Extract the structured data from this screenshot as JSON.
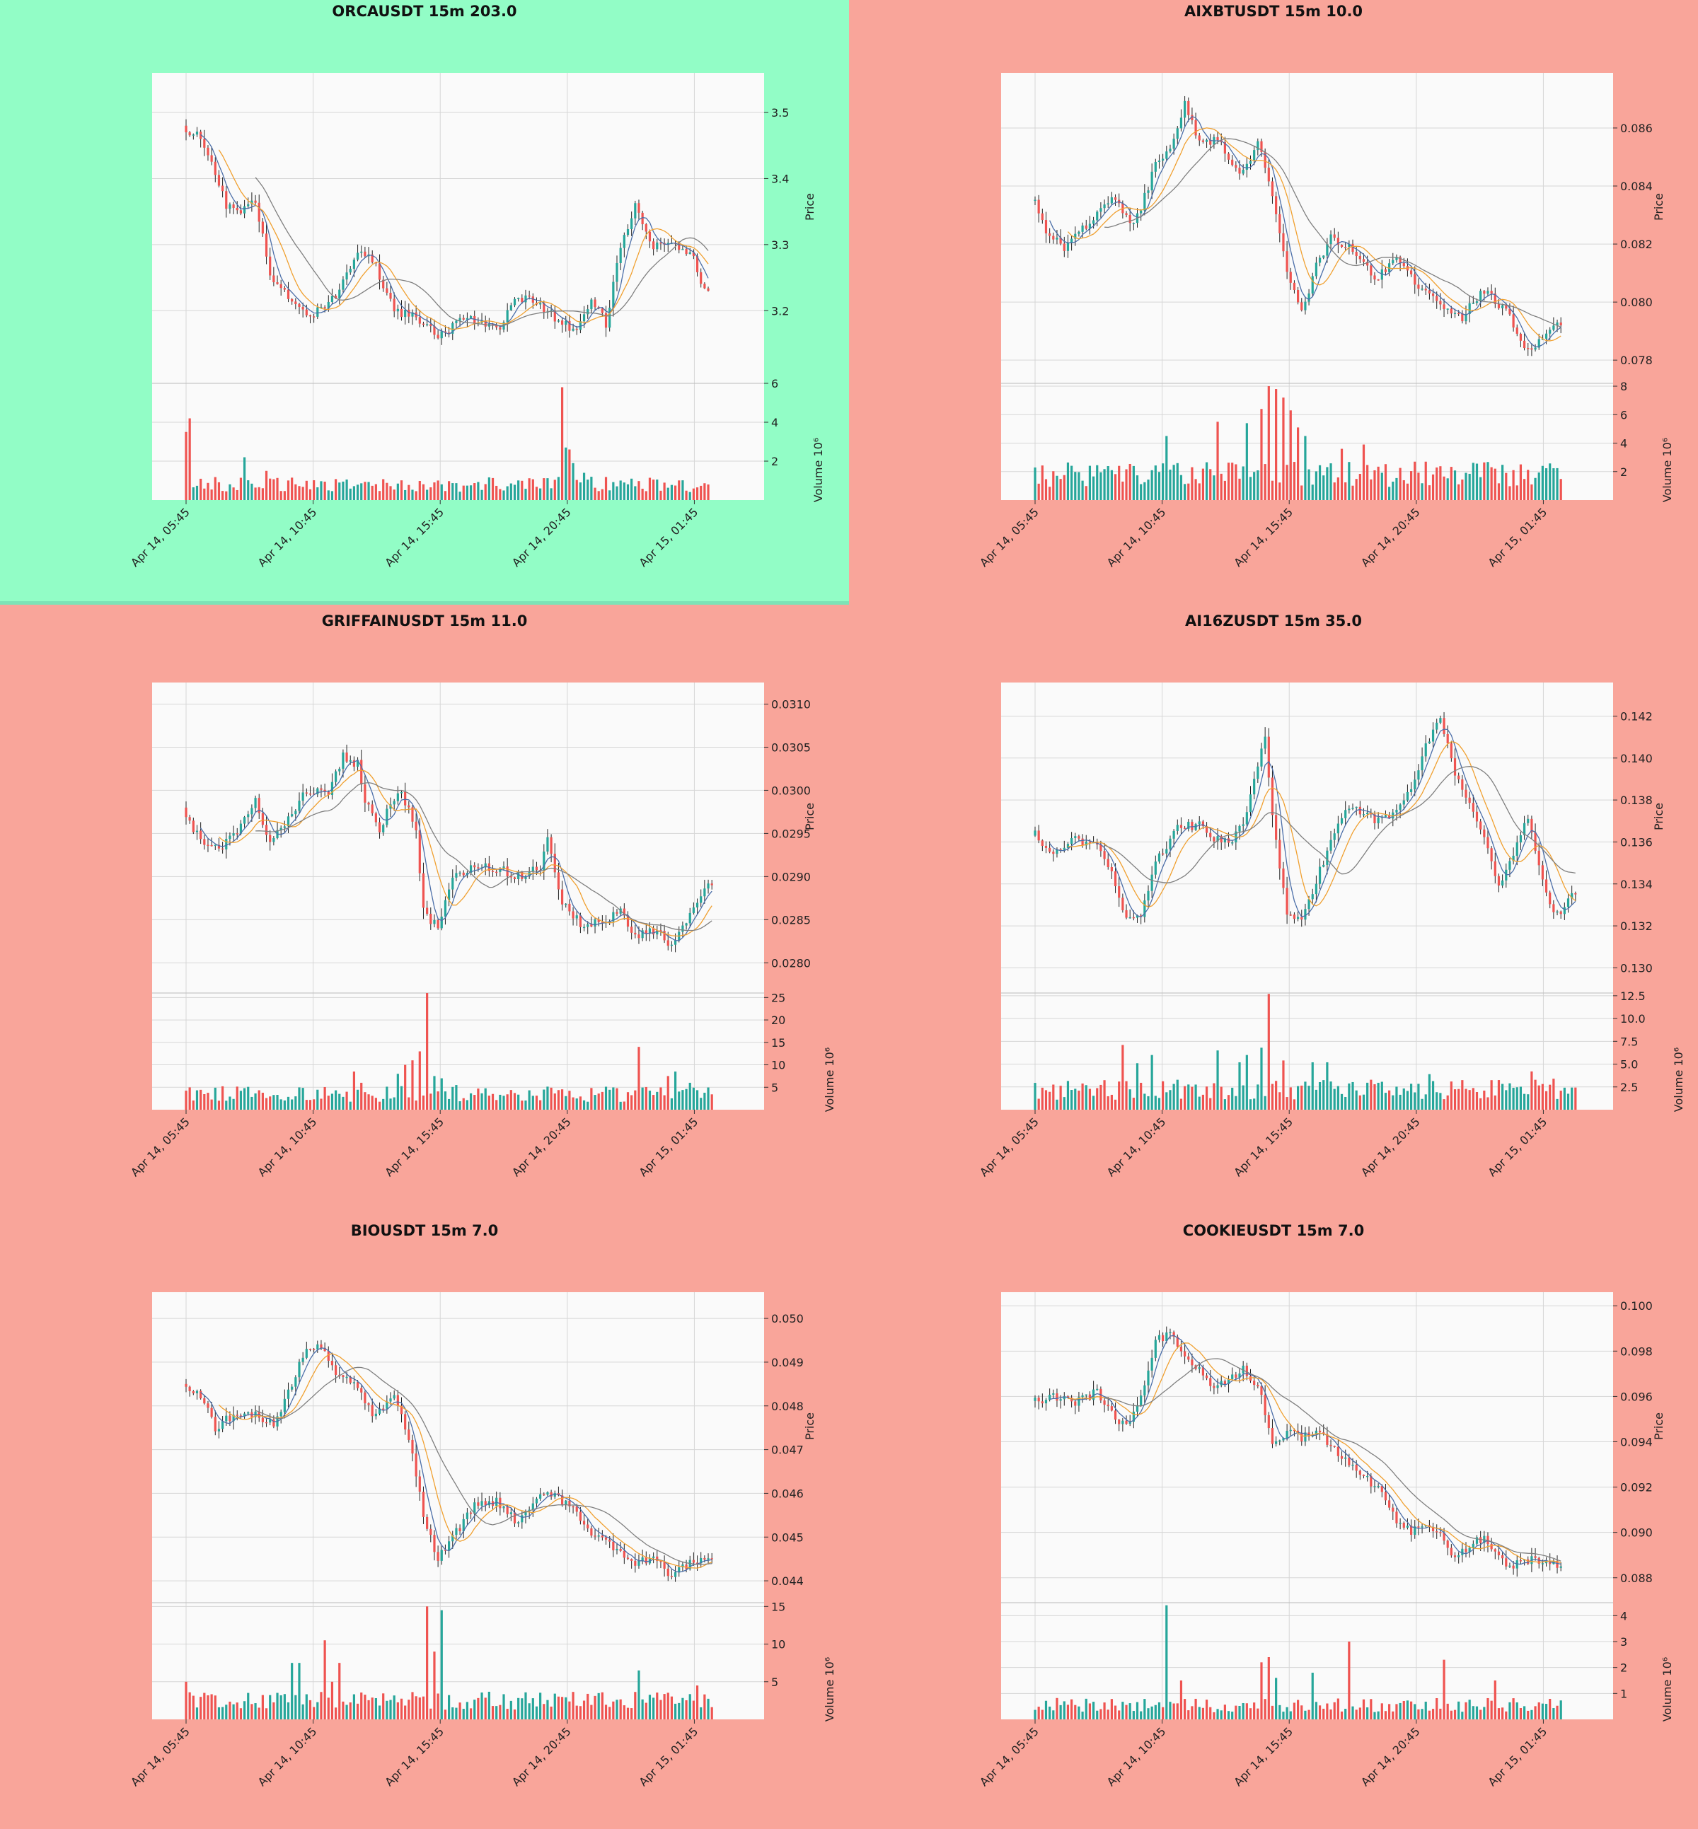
{
  "colors": {
    "up": "#26a69a",
    "down": "#ef5350",
    "ma_fast": "#4b6ea8",
    "ma_mid": "#f0a030",
    "ma_slow": "#7f7f7f",
    "bg_highlight": "#92fdc6",
    "bg_default": "#f9a59a",
    "plot_bg": "#fafafa",
    "grid": "#d6d6d6"
  },
  "chart_data": [
    {
      "type": "candlestick",
      "title": "ORCAUSDT 15m 203.0",
      "highlight": true,
      "price_label": "Price",
      "volume_label": "Volume  10⁶",
      "x_ticks": [
        "Apr 14, 05:45",
        "Apr 14, 10:45",
        "Apr 14, 15:45",
        "Apr 14, 20:45",
        "Apr 15, 01:45"
      ],
      "price_ticks": [
        3.2,
        3.3,
        3.4,
        3.5
      ],
      "price_tick_labels": [
        "3.2",
        "3.3",
        "3.4",
        "3.5"
      ],
      "ylim": [
        3.09,
        3.56
      ],
      "volume_ticks": [
        2,
        4,
        6
      ],
      "volume_tick_labels": [
        "2",
        "4",
        "6"
      ],
      "vlim": [
        0,
        6
      ],
      "start": 3.48,
      "end": 3.23,
      "path": [
        [
          0,
          3.48
        ],
        [
          5,
          3.46
        ],
        [
          8,
          3.42
        ],
        [
          12,
          3.36
        ],
        [
          16,
          3.35
        ],
        [
          20,
          3.37
        ],
        [
          24,
          3.25
        ],
        [
          29,
          3.22
        ],
        [
          35,
          3.19
        ],
        [
          42,
          3.22
        ],
        [
          48,
          3.29
        ],
        [
          52,
          3.28
        ],
        [
          58,
          3.2
        ],
        [
          64,
          3.19
        ],
        [
          70,
          3.16
        ],
        [
          78,
          3.19
        ],
        [
          86,
          3.17
        ],
        [
          92,
          3.22
        ],
        [
          98,
          3.21
        ],
        [
          104,
          3.18
        ],
        [
          108,
          3.17
        ],
        [
          112,
          3.22
        ],
        [
          116,
          3.18
        ],
        [
          120,
          3.3
        ],
        [
          124,
          3.36
        ],
        [
          128,
          3.3
        ],
        [
          134,
          3.3
        ],
        [
          140,
          3.28
        ],
        [
          143,
          3.23
        ]
      ],
      "vol_base": 0.8,
      "vol_spikes": [
        [
          0,
          3.5
        ],
        [
          1,
          4.2
        ],
        [
          16,
          2.2
        ],
        [
          22,
          1.5
        ],
        [
          103,
          5.8
        ],
        [
          104,
          2.7
        ],
        [
          105,
          2.6
        ],
        [
          106,
          1.9
        ],
        [
          109,
          1.4
        ]
      ]
    },
    {
      "type": "candlestick",
      "title": "AIXBTUSDT 15m 10.0",
      "highlight": false,
      "price_label": "Price",
      "volume_label": "Volume  10⁶",
      "x_ticks": [
        "Apr 14, 05:45",
        "Apr 14, 10:45",
        "Apr 14, 15:45",
        "Apr 14, 20:45",
        "Apr 15, 01:45"
      ],
      "price_ticks": [
        0.078,
        0.08,
        0.082,
        0.084,
        0.086
      ],
      "price_tick_labels": [
        "0.078",
        "0.080",
        "0.082",
        "0.084",
        "0.086"
      ],
      "ylim": [
        0.0772,
        0.0879
      ],
      "volume_ticks": [
        2,
        4,
        6,
        8
      ],
      "volume_tick_labels": [
        "2",
        "4",
        "6",
        "8"
      ],
      "vlim": [
        0,
        8.2
      ],
      "start": 0.0835,
      "end": 0.0792,
      "path": [
        [
          0,
          0.0837
        ],
        [
          4,
          0.0825
        ],
        [
          9,
          0.0818
        ],
        [
          16,
          0.0828
        ],
        [
          22,
          0.0836
        ],
        [
          28,
          0.0826
        ],
        [
          34,
          0.0847
        ],
        [
          38,
          0.0852
        ],
        [
          42,
          0.0868
        ],
        [
          46,
          0.0856
        ],
        [
          52,
          0.0855
        ],
        [
          56,
          0.0845
        ],
        [
          60,
          0.0848
        ],
        [
          62,
          0.0857
        ],
        [
          66,
          0.0835
        ],
        [
          70,
          0.081
        ],
        [
          74,
          0.0796
        ],
        [
          78,
          0.0812
        ],
        [
          82,
          0.0822
        ],
        [
          88,
          0.0818
        ],
        [
          94,
          0.0808
        ],
        [
          100,
          0.0815
        ],
        [
          106,
          0.0806
        ],
        [
          112,
          0.08
        ],
        [
          118,
          0.0795
        ],
        [
          124,
          0.0804
        ],
        [
          130,
          0.0797
        ],
        [
          134,
          0.0786
        ],
        [
          137,
          0.0783
        ],
        [
          140,
          0.0788
        ],
        [
          144,
          0.0792
        ]
      ],
      "vol_base": 1.8,
      "vol_spikes": [
        [
          36,
          4.5
        ],
        [
          50,
          5.5
        ],
        [
          58,
          5.4
        ],
        [
          62,
          6.4
        ],
        [
          64,
          8
        ],
        [
          66,
          7.8
        ],
        [
          68,
          7.2
        ],
        [
          70,
          6.3
        ],
        [
          72,
          5.1
        ],
        [
          74,
          4.5
        ],
        [
          84,
          3.6
        ],
        [
          90,
          3.9
        ]
      ]
    },
    {
      "type": "candlestick",
      "title": "GRIFFAINUSDT 15m 11.0",
      "highlight": false,
      "price_label": "Price",
      "volume_label": "Volume  10⁶",
      "x_ticks": [
        "Apr 14, 05:45",
        "Apr 14, 10:45",
        "Apr 14, 15:45",
        "Apr 14, 20:45",
        "Apr 15, 01:45"
      ],
      "price_ticks": [
        0.028,
        0.0285,
        0.029,
        0.0295,
        0.03,
        0.0305,
        0.031
      ],
      "price_tick_labels": [
        "0.0280",
        "0.0285",
        "0.0290",
        "0.0295",
        "0.0300",
        "0.0305",
        "0.0310"
      ],
      "ylim": [
        0.02765,
        0.03125
      ],
      "volume_ticks": [
        5,
        10,
        15,
        20,
        25
      ],
      "volume_tick_labels": [
        "5",
        "10",
        "15",
        "20",
        "25"
      ],
      "vlim": [
        0,
        26
      ],
      "start": 0.0298,
      "end": 0.0289,
      "path": [
        [
          0,
          0.0298
        ],
        [
          5,
          0.0294
        ],
        [
          10,
          0.0293
        ],
        [
          16,
          0.0296
        ],
        [
          20,
          0.0299
        ],
        [
          24,
          0.0294
        ],
        [
          28,
          0.0296
        ],
        [
          34,
          0.03
        ],
        [
          40,
          0.03
        ],
        [
          44,
          0.0304
        ],
        [
          48,
          0.0303
        ],
        [
          50,
          0.0299
        ],
        [
          54,
          0.0295
        ],
        [
          56,
          0.0298
        ],
        [
          60,
          0.03
        ],
        [
          64,
          0.0295
        ],
        [
          66,
          0.0286
        ],
        [
          70,
          0.0284
        ],
        [
          74,
          0.029
        ],
        [
          80,
          0.0291
        ],
        [
          86,
          0.0291
        ],
        [
          92,
          0.029
        ],
        [
          98,
          0.0291
        ],
        [
          100,
          0.0295
        ],
        [
          104,
          0.0287
        ],
        [
          110,
          0.0284
        ],
        [
          116,
          0.0285
        ],
        [
          120,
          0.0286
        ],
        [
          124,
          0.0283
        ],
        [
          130,
          0.0284
        ],
        [
          134,
          0.0282
        ],
        [
          138,
          0.0285
        ],
        [
          144,
          0.0289
        ]
      ],
      "vol_base": 3.5,
      "vol_spikes": [
        [
          46,
          8.5
        ],
        [
          48,
          6
        ],
        [
          58,
          8
        ],
        [
          60,
          10
        ],
        [
          62,
          11
        ],
        [
          64,
          13
        ],
        [
          66,
          26
        ],
        [
          68,
          7.5
        ],
        [
          70,
          7
        ],
        [
          74,
          5.5
        ],
        [
          124,
          14
        ],
        [
          132,
          7.5
        ],
        [
          134,
          8.5
        ],
        [
          138,
          6
        ]
      ]
    },
    {
      "type": "candlestick",
      "title": "AI16ZUSDT 15m 35.0",
      "highlight": false,
      "price_label": "Price",
      "volume_label": "Volume  10⁶",
      "x_ticks": [
        "Apr 14, 05:45",
        "Apr 14, 10:45",
        "Apr 14, 15:45",
        "Apr 14, 20:45",
        "Apr 15, 01:45"
      ],
      "price_ticks": [
        0.13,
        0.132,
        0.134,
        0.136,
        0.138,
        0.14,
        0.142
      ],
      "price_tick_labels": [
        "0.130",
        "0.132",
        "0.134",
        "0.136",
        "0.138",
        "0.140",
        "0.142"
      ],
      "ylim": [
        0.1288,
        0.1436
      ],
      "volume_ticks": [
        2.5,
        5,
        7.5,
        10,
        12.5
      ],
      "volume_tick_labels": [
        "2.5",
        "5.0",
        "7.5",
        "10.0",
        "12.5"
      ],
      "vlim": [
        0,
        12.8
      ],
      "start": 0.1363,
      "end": 0.1335,
      "path": [
        [
          0,
          0.1365
        ],
        [
          6,
          0.1355
        ],
        [
          12,
          0.1362
        ],
        [
          18,
          0.1357
        ],
        [
          22,
          0.1345
        ],
        [
          26,
          0.1322
        ],
        [
          30,
          0.1325
        ],
        [
          34,
          0.135
        ],
        [
          40,
          0.1367
        ],
        [
          46,
          0.1368
        ],
        [
          50,
          0.1362
        ],
        [
          54,
          0.136
        ],
        [
          58,
          0.1368
        ],
        [
          62,
          0.1395
        ],
        [
          64,
          0.141
        ],
        [
          66,
          0.1372
        ],
        [
          70,
          0.1325
        ],
        [
          74,
          0.1322
        ],
        [
          78,
          0.1342
        ],
        [
          84,
          0.1368
        ],
        [
          88,
          0.1378
        ],
        [
          94,
          0.137
        ],
        [
          100,
          0.1375
        ],
        [
          104,
          0.1385
        ],
        [
          108,
          0.1405
        ],
        [
          112,
          0.142
        ],
        [
          116,
          0.1392
        ],
        [
          120,
          0.1378
        ],
        [
          124,
          0.1362
        ],
        [
          128,
          0.134
        ],
        [
          132,
          0.1355
        ],
        [
          136,
          0.1372
        ],
        [
          140,
          0.134
        ],
        [
          144,
          0.1325
        ],
        [
          148,
          0.1335
        ]
      ],
      "vol_base": 2.2,
      "vol_spikes": [
        [
          24,
          7.1
        ],
        [
          28,
          5.1
        ],
        [
          32,
          6
        ],
        [
          50,
          6.5
        ],
        [
          56,
          5.2
        ],
        [
          58,
          6
        ],
        [
          62,
          6.8
        ],
        [
          64,
          12.7
        ],
        [
          68,
          5.4
        ],
        [
          76,
          5.2
        ],
        [
          80,
          5.2
        ],
        [
          108,
          3.9
        ],
        [
          136,
          4.2
        ],
        [
          142,
          3.4
        ]
      ]
    },
    {
      "type": "candlestick",
      "title": "BIOUSDT 15m 7.0",
      "highlight": false,
      "price_label": "Price",
      "volume_label": "Volume  10⁶",
      "x_ticks": [
        "Apr 14, 05:45",
        "Apr 14, 10:45",
        "Apr 14, 15:45",
        "Apr 14, 20:45",
        "Apr 15, 01:45"
      ],
      "price_ticks": [
        0.044,
        0.045,
        0.046,
        0.047,
        0.048,
        0.049,
        0.05
      ],
      "price_tick_labels": [
        "0.044",
        "0.045",
        "0.046",
        "0.047",
        "0.048",
        "0.049",
        "0.050"
      ],
      "ylim": [
        0.0435,
        0.0506
      ],
      "volume_ticks": [
        5,
        10,
        15
      ],
      "volume_tick_labels": [
        "5",
        "10",
        "15"
      ],
      "vlim": [
        0,
        15.5
      ],
      "start": 0.0485,
      "end": 0.0445,
      "path": [
        [
          0,
          0.0485
        ],
        [
          5,
          0.0482
        ],
        [
          9,
          0.0475
        ],
        [
          14,
          0.0478
        ],
        [
          20,
          0.0478
        ],
        [
          25,
          0.0476
        ],
        [
          30,
          0.0485
        ],
        [
          34,
          0.0493
        ],
        [
          38,
          0.0493
        ],
        [
          42,
          0.0488
        ],
        [
          48,
          0.0485
        ],
        [
          52,
          0.0478
        ],
        [
          58,
          0.0482
        ],
        [
          62,
          0.0473
        ],
        [
          66,
          0.0455
        ],
        [
          70,
          0.0445
        ],
        [
          74,
          0.045
        ],
        [
          80,
          0.0457
        ],
        [
          86,
          0.0458
        ],
        [
          92,
          0.0453
        ],
        [
          96,
          0.0458
        ],
        [
          100,
          0.046
        ],
        [
          106,
          0.0457
        ],
        [
          112,
          0.0451
        ],
        [
          118,
          0.0448
        ],
        [
          124,
          0.0444
        ],
        [
          130,
          0.0445
        ],
        [
          134,
          0.0441
        ],
        [
          140,
          0.0445
        ],
        [
          144,
          0.0445
        ]
      ],
      "vol_base": 2.5,
      "vol_spikes": [
        [
          0,
          5
        ],
        [
          29,
          7.5
        ],
        [
          31,
          7.5
        ],
        [
          38,
          10.5
        ],
        [
          40,
          5
        ],
        [
          42,
          7.5
        ],
        [
          66,
          15
        ],
        [
          68,
          9
        ],
        [
          70,
          14.5
        ],
        [
          124,
          6.5
        ],
        [
          140,
          4.5
        ]
      ]
    },
    {
      "type": "candlestick",
      "title": "COOKIEUSDT 15m 7.0",
      "highlight": false,
      "price_label": "Price",
      "volume_label": "Volume  10⁶",
      "x_ticks": [
        "Apr 14, 05:45",
        "Apr 14, 10:45",
        "Apr 14, 15:45",
        "Apr 14, 20:45",
        "Apr 15, 01:45"
      ],
      "price_ticks": [
        0.088,
        0.09,
        0.092,
        0.094,
        0.096,
        0.098,
        0.1
      ],
      "price_tick_labels": [
        "0.088",
        "0.090",
        "0.092",
        "0.094",
        "0.096",
        "0.098",
        "0.100"
      ],
      "ylim": [
        0.0869,
        0.1006
      ],
      "volume_ticks": [
        1,
        2,
        3,
        4
      ],
      "volume_tick_labels": [
        "1",
        "2",
        "3",
        "4"
      ],
      "vlim": [
        0,
        4.5
      ],
      "start": 0.0958,
      "end": 0.0885,
      "path": [
        [
          0,
          0.0958
        ],
        [
          6,
          0.096
        ],
        [
          12,
          0.0957
        ],
        [
          18,
          0.0962
        ],
        [
          22,
          0.0952
        ],
        [
          26,
          0.0947
        ],
        [
          30,
          0.096
        ],
        [
          34,
          0.0985
        ],
        [
          38,
          0.0987
        ],
        [
          42,
          0.0977
        ],
        [
          46,
          0.0972
        ],
        [
          50,
          0.0963
        ],
        [
          54,
          0.0967
        ],
        [
          58,
          0.0972
        ],
        [
          62,
          0.0965
        ],
        [
          66,
          0.094
        ],
        [
          70,
          0.0944
        ],
        [
          74,
          0.0942
        ],
        [
          78,
          0.0945
        ],
        [
          84,
          0.0935
        ],
        [
          90,
          0.0927
        ],
        [
          96,
          0.0917
        ],
        [
          100,
          0.0905
        ],
        [
          104,
          0.09
        ],
        [
          108,
          0.0903
        ],
        [
          112,
          0.0898
        ],
        [
          116,
          0.0888
        ],
        [
          120,
          0.0895
        ],
        [
          124,
          0.0898
        ],
        [
          130,
          0.0885
        ],
        [
          136,
          0.0888
        ],
        [
          140,
          0.0888
        ],
        [
          144,
          0.0885
        ]
      ],
      "vol_base": 0.55,
      "vol_spikes": [
        [
          36,
          4.4
        ],
        [
          40,
          1.5
        ],
        [
          62,
          2.2
        ],
        [
          64,
          2.4
        ],
        [
          66,
          1.6
        ],
        [
          76,
          1.8
        ],
        [
          86,
          3
        ],
        [
          112,
          2.3
        ],
        [
          126,
          1.5
        ]
      ]
    }
  ]
}
